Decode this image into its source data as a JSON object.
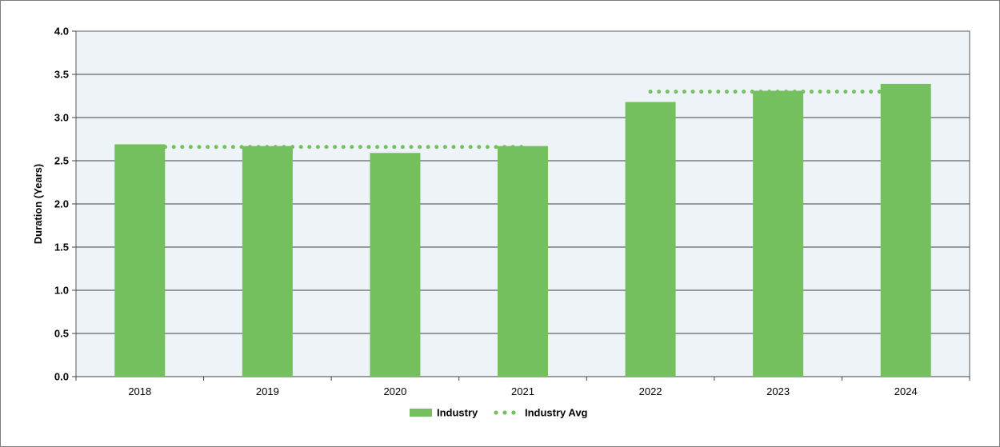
{
  "chart_data": {
    "type": "bar",
    "categories": [
      "2018",
      "2019",
      "2020",
      "2021",
      "2022",
      "2023",
      "2024"
    ],
    "series": [
      {
        "name": "Industry",
        "type": "bar",
        "color": "#74bf5e",
        "values": [
          2.69,
          2.67,
          2.59,
          2.67,
          3.18,
          3.31,
          3.39
        ]
      },
      {
        "name": "Industry Avg",
        "type": "dotted-line",
        "color": "#74bf5e",
        "segments": [
          {
            "from": "2018",
            "to": "2021",
            "value": 2.66
          },
          {
            "from": "2022",
            "to": "2024",
            "value": 3.3
          }
        ]
      }
    ],
    "ylabel": "Duration (Years)",
    "xlabel": "",
    "ylim": [
      0,
      4.0
    ],
    "yticks": [
      "0.0",
      "0.5",
      "1.0",
      "1.5",
      "2.0",
      "2.5",
      "3.0",
      "3.5",
      "4.0"
    ],
    "grid": true,
    "plot_background": "#eef3f8",
    "legend_position": "bottom-center"
  }
}
